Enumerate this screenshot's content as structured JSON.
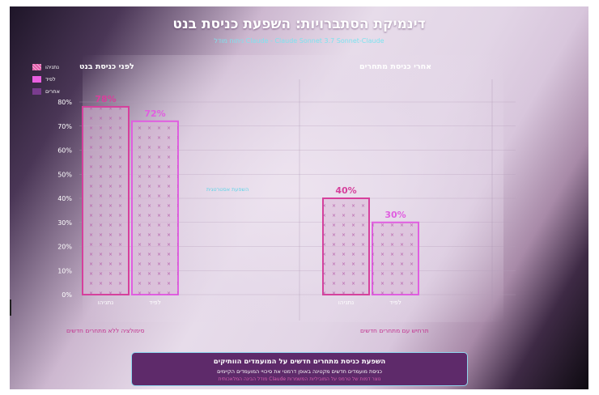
{
  "title": "דינמיקת הסתברויות: השפעת כניסת בנט",
  "subtitle": "ניתוח מודל Claude - Claude Sonnet 3.7 Sonnet-Claude",
  "legend": [
    {
      "label": "נתניהו",
      "color": "#e05aa8",
      "pattern": "dense"
    },
    {
      "label": "לפיד",
      "color": "#e95fe0",
      "pattern": "solid"
    },
    {
      "label": "אחרים",
      "color": "#7a3c8e",
      "pattern": "solid"
    }
  ],
  "panels": [
    {
      "title": "לפני כניסת בנט",
      "footnote": "סימולציה ללא מתחרים חדשים"
    },
    {
      "title": "אחרי כניסת מתחרים",
      "footnote": "תרחיש עם מתחרים חדשים"
    }
  ],
  "middle_label": "השפעת אסטרטגית",
  "summary": {
    "headline": "השפעת כניסת מתחרים חדשים על המועמדים הוותיקים",
    "line": "כניסת מועמדים חדשים מקטינה באופן דרמטי את סיכויי המועמדים הקיימים",
    "note": "מודל הבינה המלאכותית Claude נוצר דמות של טרמפ על המוביליות המשמרות"
  },
  "chart_data": {
    "type": "bar",
    "title": "דינמיקת הסתברויות: השפעת כניסת בנט",
    "ylim": [
      0,
      80
    ],
    "yticks": [
      "0%",
      "10%",
      "20%",
      "30%",
      "40%",
      "50%",
      "60%",
      "70%",
      "80%"
    ],
    "grid": true,
    "legend_position": "top-left",
    "groups": [
      {
        "name": "לפני כניסת בנט",
        "bars": [
          {
            "category": "נתניהו",
            "value": 78,
            "label": "78%",
            "color": "#d6409c"
          },
          {
            "category": "לפיד",
            "value": 72,
            "label": "72%",
            "color": "#e05ee0"
          }
        ]
      },
      {
        "name": "אחרי כניסת מתחרים",
        "bars": [
          {
            "category": "נתניהו",
            "value": 40,
            "label": "40%",
            "color": "#d6409c"
          },
          {
            "category": "לפיד",
            "value": 30,
            "label": "30%",
            "color": "#e05ee0"
          }
        ]
      }
    ]
  }
}
